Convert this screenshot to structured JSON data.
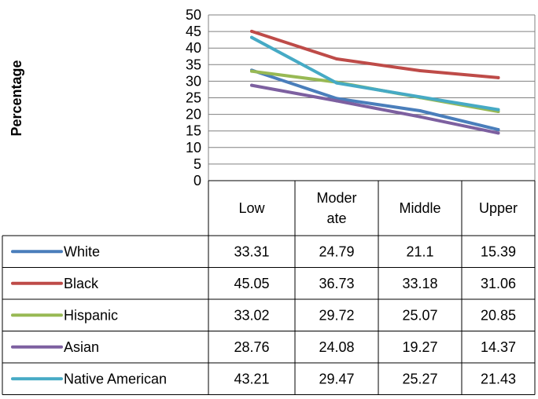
{
  "chart_data": {
    "type": "line",
    "title": "",
    "xlabel": "",
    "ylabel": "Percentage",
    "ylim": [
      0,
      50
    ],
    "yticks": [
      0,
      5,
      10,
      15,
      20,
      25,
      30,
      35,
      40,
      45,
      50
    ],
    "grid": true,
    "legend": "data-table",
    "categories": [
      [
        "Low"
      ],
      [
        "Moder",
        "ate"
      ],
      [
        "Middle"
      ],
      [
        "Upper"
      ]
    ],
    "series": [
      {
        "name": "White",
        "color": "#4a7ebb",
        "values": [
          33.31,
          24.79,
          21.1,
          15.39
        ],
        "labels": [
          "33.31",
          "24.79",
          "21.1",
          "15.39"
        ]
      },
      {
        "name": "Black",
        "color": "#be4b48",
        "values": [
          45.05,
          36.73,
          33.18,
          31.06
        ],
        "labels": [
          "45.05",
          "36.73",
          "33.18",
          "31.06"
        ]
      },
      {
        "name": "Hispanic",
        "color": "#98b954",
        "values": [
          33.02,
          29.72,
          25.07,
          20.85
        ],
        "labels": [
          "33.02",
          "29.72",
          "25.07",
          "20.85"
        ]
      },
      {
        "name": "Asian",
        "color": "#7d60a0",
        "values": [
          28.76,
          24.08,
          19.27,
          14.37
        ],
        "labels": [
          "28.76",
          "24.08",
          "19.27",
          "14.37"
        ]
      },
      {
        "name": "Native American",
        "color": "#46aac5",
        "values": [
          43.21,
          29.47,
          25.27,
          21.43
        ],
        "labels": [
          "43.21",
          "29.47",
          "25.27",
          "21.43"
        ]
      }
    ]
  }
}
